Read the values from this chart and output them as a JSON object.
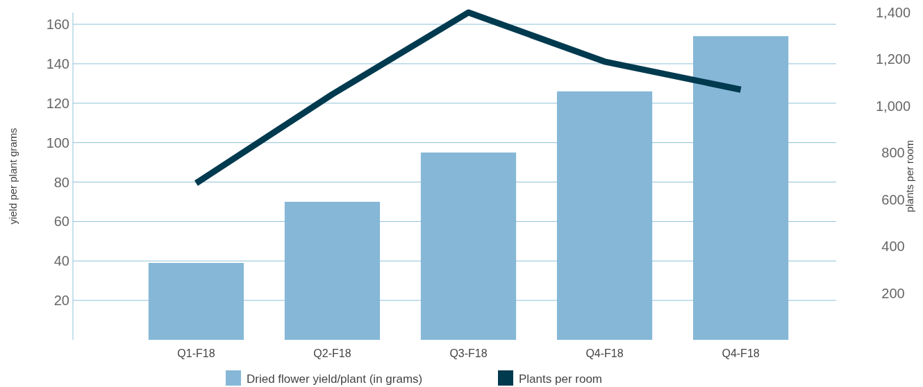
{
  "chart_data": {
    "type": "bar",
    "categories": [
      "Q1-F18",
      "Q2-F18",
      "Q3-F18",
      "Q4-F18",
      "Q4-F18"
    ],
    "series": [
      {
        "name": "Dried flower yield/plant (in grams)",
        "color": "#86b7d7",
        "values": [
          39,
          70,
          95,
          126,
          154
        ]
      },
      {
        "name": "Plants per room",
        "type": "line",
        "axis": "y2",
        "color": "#003a4f",
        "values": [
          670,
          1050,
          1400,
          1190,
          1070
        ]
      }
    ],
    "ylabel": "yield per plant grams",
    "y2label": "plants per room",
    "ylim": [
      0,
      166
    ],
    "yticks": [
      20,
      40,
      60,
      80,
      100,
      120,
      140,
      160
    ],
    "y2lim": [
      0,
      1400
    ],
    "y2ticks": [
      {
        "value": 200,
        "label": "200"
      },
      {
        "value": 400,
        "label": "400"
      },
      {
        "value": 600,
        "label": "600"
      },
      {
        "value": 800,
        "label": "800"
      },
      {
        "value": 1000,
        "label": "1,000"
      },
      {
        "value": 1200,
        "label": "1,200"
      },
      {
        "value": 1400,
        "label": "1,400"
      }
    ],
    "grid": "y",
    "legend": "bottom",
    "marker": "none",
    "line_style": "solid"
  }
}
